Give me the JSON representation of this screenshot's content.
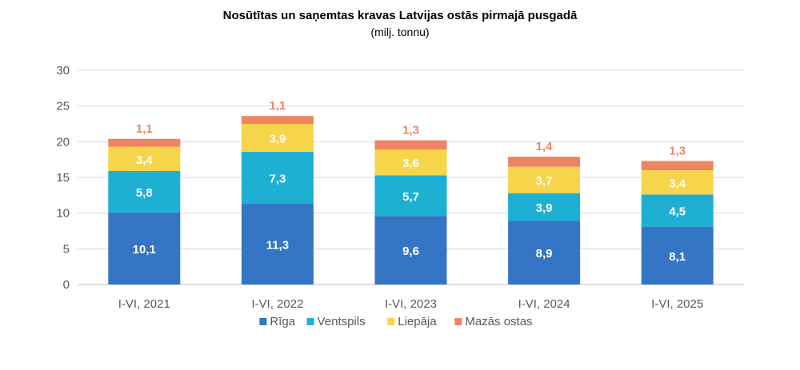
{
  "chart_data": {
    "type": "bar",
    "stacked": true,
    "title": "Nosūtītas un saņemtas kravas Latvijas ostās pirmajā pusgadā",
    "subtitle": "(milj. tonnu)",
    "categories": [
      "I-VI, 2021",
      "I-VI, 2022",
      "I-VI, 2023",
      "I-VI, 2024",
      "I-VI, 2025"
    ],
    "series": [
      {
        "name": "Rīga",
        "color": "#3575C5",
        "label_color": "#ffffff",
        "values": [
          10.1,
          11.3,
          9.6,
          8.9,
          8.1
        ],
        "labels": [
          "10,1",
          "11,3",
          "9,6",
          "8,9",
          "8,1"
        ]
      },
      {
        "name": "Ventspils",
        "color": "#1EB0D2",
        "label_color": "#ffffff",
        "values": [
          5.8,
          7.3,
          5.7,
          3.9,
          4.5
        ],
        "labels": [
          "5,8",
          "7,3",
          "5,7",
          "3,9",
          "4,5"
        ]
      },
      {
        "name": "Liepāja",
        "color": "#F7D54A",
        "label_color": "#ffffff",
        "values": [
          3.4,
          3.9,
          3.6,
          3.7,
          3.4
        ],
        "labels": [
          "3,4",
          "3,9",
          "3,6",
          "3,7",
          "3,4"
        ]
      },
      {
        "name": "Mazās ostas",
        "color": "#EE8462",
        "label_color": "#EE8462",
        "values": [
          1.1,
          1.1,
          1.3,
          1.4,
          1.3
        ],
        "labels": [
          "1,1",
          "1,1",
          "1,3",
          "1,4",
          "1,3"
        ]
      }
    ],
    "ylim": [
      0,
      30
    ],
    "yticks": [
      0,
      5,
      10,
      15,
      20,
      25,
      30
    ],
    "grid": true,
    "legend_position": "bottom"
  }
}
